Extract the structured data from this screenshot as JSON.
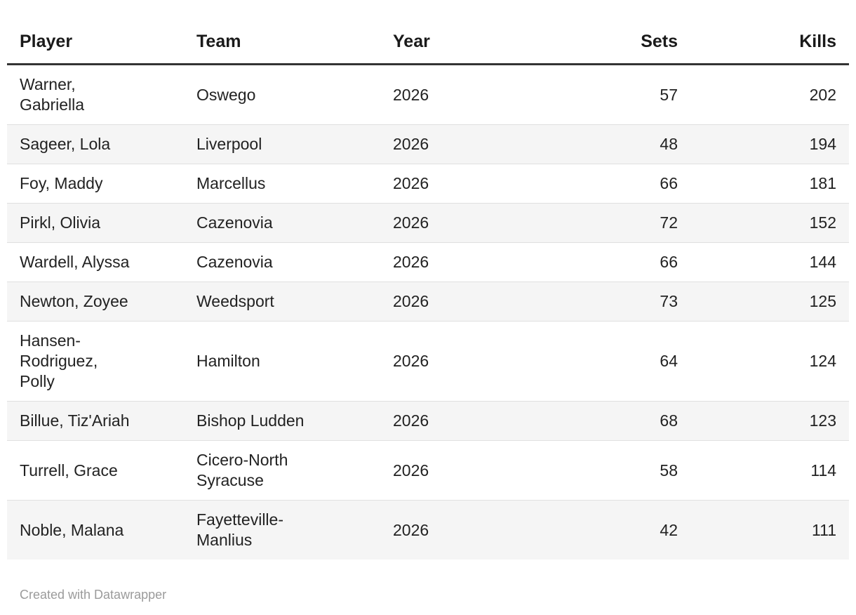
{
  "colors": {
    "page_background": "#ffffff",
    "row_alt_background": "#f5f5f5",
    "row_divider": "#e0e0e0",
    "header_rule": "#333333",
    "header_text": "#1a1a1a",
    "body_text": "#222222",
    "attribution_text": "#9b9b9b"
  },
  "table": {
    "columns": [
      {
        "label": "Player",
        "align": "left"
      },
      {
        "label": "Team",
        "align": "left"
      },
      {
        "label": "Year",
        "align": "left"
      },
      {
        "label": "Sets",
        "align": "right"
      },
      {
        "label": "Kills",
        "align": "right"
      }
    ],
    "rows": [
      {
        "player": "Warner,\nGabriella",
        "team": "Oswego",
        "year": "2026",
        "sets": "57",
        "kills": "202"
      },
      {
        "player": "Sageer, Lola",
        "team": "Liverpool",
        "year": "2026",
        "sets": "48",
        "kills": "194"
      },
      {
        "player": "Foy, Maddy",
        "team": "Marcellus",
        "year": "2026",
        "sets": "66",
        "kills": "181"
      },
      {
        "player": "Pirkl, Olivia",
        "team": "Cazenovia",
        "year": "2026",
        "sets": "72",
        "kills": "152"
      },
      {
        "player": "Wardell, Alyssa",
        "team": "Cazenovia",
        "year": "2026",
        "sets": "66",
        "kills": "144"
      },
      {
        "player": "Newton, Zoyee",
        "team": "Weedsport",
        "year": "2026",
        "sets": "73",
        "kills": "125"
      },
      {
        "player": "Hansen-\nRodriguez,\nPolly",
        "team": "Hamilton",
        "year": "2026",
        "sets": "64",
        "kills": "124"
      },
      {
        "player": "Billue, Tiz'Ariah",
        "team": "Bishop Ludden",
        "year": "2026",
        "sets": "68",
        "kills": "123"
      },
      {
        "player": "Turrell, Grace",
        "team": "Cicero-North\nSyracuse",
        "year": "2026",
        "sets": "58",
        "kills": "114"
      },
      {
        "player": "Noble, Malana",
        "team": "Fayetteville-\nManlius",
        "year": "2026",
        "sets": "42",
        "kills": "111"
      }
    ]
  },
  "footer": {
    "attribution": "Created with Datawrapper"
  },
  "chart_data": {
    "type": "table",
    "title": "",
    "columns": [
      "Player",
      "Team",
      "Year",
      "Sets",
      "Kills"
    ],
    "rows": [
      [
        "Warner, Gabriella",
        "Oswego",
        2026,
        57,
        202
      ],
      [
        "Sageer, Lola",
        "Liverpool",
        2026,
        48,
        194
      ],
      [
        "Foy, Maddy",
        "Marcellus",
        2026,
        66,
        181
      ],
      [
        "Pirkl, Olivia",
        "Cazenovia",
        2026,
        72,
        152
      ],
      [
        "Wardell, Alyssa",
        "Cazenovia",
        2026,
        66,
        144
      ],
      [
        "Newton, Zoyee",
        "Weedsport",
        2026,
        73,
        125
      ],
      [
        "Hansen-Rodriguez, Polly",
        "Hamilton",
        2026,
        64,
        124
      ],
      [
        "Billue, Tiz'Ariah",
        "Bishop Ludden",
        2026,
        68,
        123
      ],
      [
        "Turrell, Grace",
        "Cicero-North Syracuse",
        2026,
        58,
        114
      ],
      [
        "Noble, Malana",
        "Fayetteville-Manlius",
        2026,
        42,
        111
      ]
    ]
  }
}
